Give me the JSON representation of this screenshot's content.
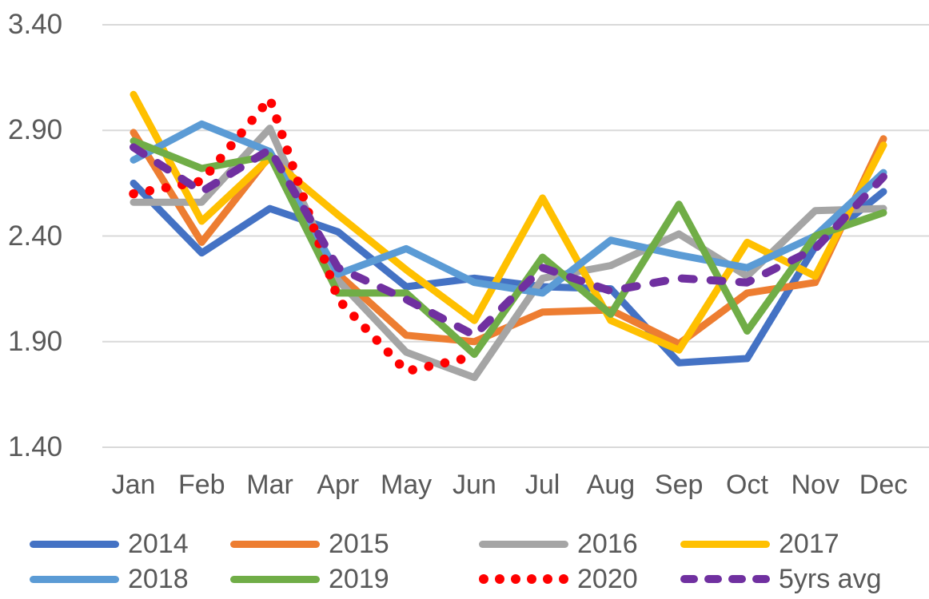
{
  "chart_data": {
    "type": "line",
    "title": "",
    "xlabel": "",
    "ylabel": "",
    "grid": true,
    "legend_position": "bottom",
    "categories": [
      "Jan",
      "Feb",
      "Mar",
      "Apr",
      "May",
      "Jun",
      "Jul",
      "Aug",
      "Sep",
      "Oct",
      "Nov",
      "Dec"
    ],
    "y_axis": {
      "min": 1.4,
      "max": 3.4,
      "step": 0.5,
      "ticks": [
        "3.40",
        "2.90",
        "2.40",
        "1.90",
        "1.40"
      ],
      "tick_values": [
        3.4,
        2.9,
        2.4,
        1.9,
        1.4
      ]
    },
    "series": [
      {
        "name": "2014",
        "color": "#4472C4",
        "dash": "solid",
        "values": [
          2.65,
          2.32,
          2.53,
          2.42,
          2.16,
          2.2,
          2.16,
          2.15,
          1.8,
          1.82,
          2.35,
          2.61
        ]
      },
      {
        "name": "2015",
        "color": "#ED7D31",
        "dash": "solid",
        "values": [
          2.89,
          2.37,
          2.78,
          2.22,
          1.93,
          1.9,
          2.04,
          2.05,
          1.89,
          2.13,
          2.18,
          2.86
        ]
      },
      {
        "name": "2016",
        "color": "#A5A5A5",
        "dash": "solid",
        "values": [
          2.56,
          2.56,
          2.91,
          2.19,
          1.85,
          1.73,
          2.2,
          2.26,
          2.41,
          2.21,
          2.52,
          2.53
        ]
      },
      {
        "name": "2017",
        "color": "#FFC000",
        "dash": "solid",
        "values": [
          3.07,
          2.47,
          2.77,
          2.5,
          2.24,
          2.0,
          2.58,
          2.0,
          1.86,
          2.37,
          2.21,
          2.83
        ]
      },
      {
        "name": "2018",
        "color": "#5B9BD5",
        "dash": "solid",
        "values": [
          2.76,
          2.93,
          2.8,
          2.22,
          2.34,
          2.18,
          2.13,
          2.38,
          2.31,
          2.25,
          2.4,
          2.7
        ]
      },
      {
        "name": "2019",
        "color": "#70AD47",
        "dash": "solid",
        "values": [
          2.85,
          2.72,
          2.78,
          2.13,
          2.13,
          1.84,
          2.3,
          2.03,
          2.55,
          1.95,
          2.4,
          2.51
        ]
      },
      {
        "name": "2020",
        "color": "#FF0000",
        "dash": "dotted",
        "values": [
          2.6,
          2.66,
          3.05,
          2.1,
          1.76,
          1.83,
          null,
          null,
          null,
          null,
          null,
          null
        ]
      },
      {
        "name": "5yrs avg",
        "color": "#7030A0",
        "dash": "dashed",
        "values": [
          2.82,
          2.61,
          2.81,
          2.25,
          2.1,
          1.93,
          2.25,
          2.14,
          2.2,
          2.18,
          2.34,
          2.68
        ]
      }
    ],
    "legend_rows": [
      [
        "2014",
        "2015",
        "2016",
        "2017"
      ],
      [
        "2018",
        "2019",
        "2020",
        "5yrs avg"
      ]
    ]
  }
}
